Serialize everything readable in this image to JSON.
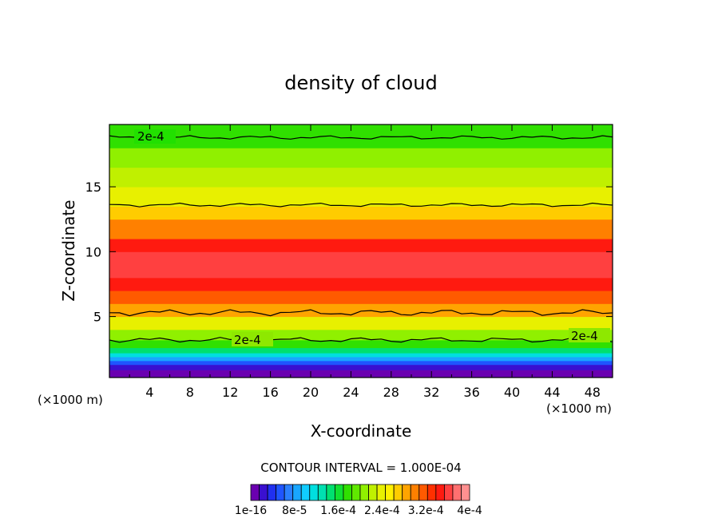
{
  "chart_data": {
    "type": "heatmap",
    "title": "density of cloud",
    "xlabel": "X-coordinate",
    "ylabel": "Z-coordinate",
    "x_unit": "(×1000 m)",
    "x_unit_right": "(×1000 m)",
    "xlim": [
      0,
      50
    ],
    "ylim": [
      0.3,
      19.8
    ],
    "x_ticks": [
      "4",
      "8",
      "12",
      "16",
      "20",
      "24",
      "28",
      "32",
      "36",
      "40",
      "44",
      "48"
    ],
    "y_ticks": [
      "5",
      "10",
      "15"
    ],
    "contour_labels": [
      "2e-4",
      "2e-4",
      "2e-4"
    ],
    "contour_interval_label": "CONTOUR INTERVAL = 1.000E-04",
    "colorbar_labels": [
      "1e-16",
      "8e-5",
      "1.6e-4",
      "2.4e-4",
      "3.2e-4",
      "4e-4"
    ],
    "colorbar_range": [
      1e-16,
      0.0004
    ],
    "colormap": [
      "#6a00b0",
      "#3a10d0",
      "#2030f0",
      "#1f55ff",
      "#2a7fff",
      "#19a6ff",
      "#11ccff",
      "#00dfe0",
      "#00e0b0",
      "#00e070",
      "#10e030",
      "#30e000",
      "#60e800",
      "#90f000",
      "#c0f000",
      "#e8f000",
      "#fff000",
      "#ffcc00",
      "#ffa400",
      "#ff8000",
      "#ff5a00",
      "#ff3000",
      "#ff1a10",
      "#ff4040",
      "#ff7070",
      "#ff9090"
    ],
    "z_profile": [
      [
        0.3,
        null
      ],
      [
        0.9,
        1e-16
      ],
      [
        1.3,
        3e-05
      ],
      [
        1.6,
        6e-05
      ],
      [
        1.9,
        9e-05
      ],
      [
        2.2,
        0.00012
      ],
      [
        2.6,
        0.00015
      ],
      [
        3.2,
        0.00018
      ],
      [
        4.0,
        0.00021
      ],
      [
        5.0,
        0.00024
      ],
      [
        6.0,
        0.00028
      ],
      [
        7.0,
        0.00032
      ],
      [
        8.0,
        0.00035
      ],
      [
        10.0,
        0.00036
      ],
      [
        11.0,
        0.00034
      ],
      [
        12.5,
        0.0003
      ],
      [
        13.5,
        0.00027
      ],
      [
        15.0,
        0.00024
      ],
      [
        16.5,
        0.00022
      ],
      [
        18.0,
        0.0002
      ],
      [
        19.8,
        0.00018
      ]
    ]
  }
}
